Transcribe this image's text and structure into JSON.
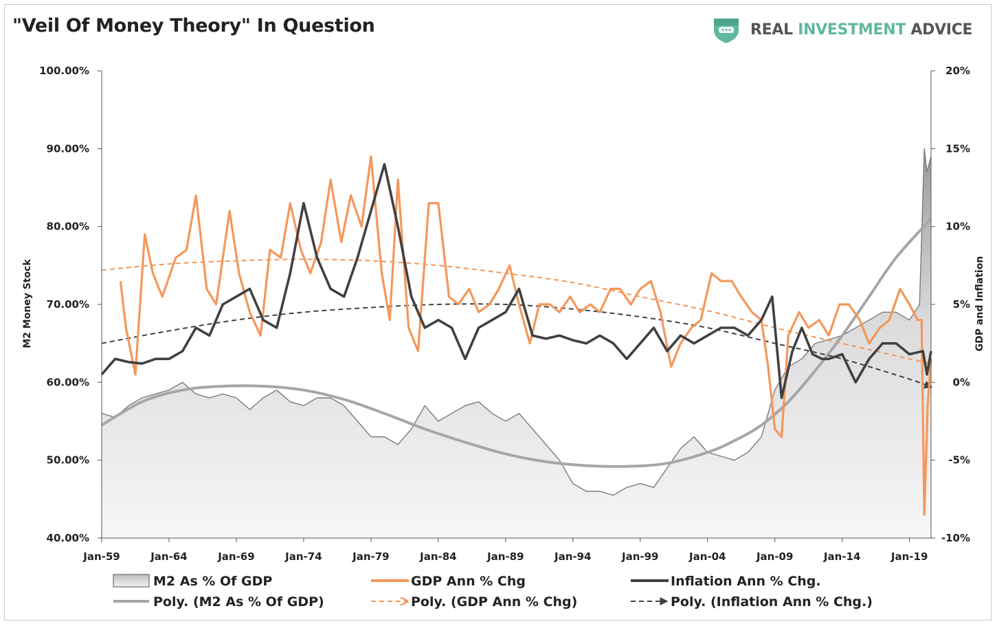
{
  "header": {
    "title": "\"Veil Of Money Theory\" In Question",
    "brand_part1": "REAL ",
    "brand_part2": "INVESTMENT ",
    "brand_part3": "ADVICE",
    "brand_colors": {
      "dark": "#555555",
      "accent": "#5fb89e"
    }
  },
  "chart_data": {
    "type": "line",
    "title": "\"Veil Of Money Theory\" In Question",
    "x_unit": "year (decimal)",
    "xlim": [
      1959,
      2020.6
    ],
    "x_ticks": [
      "Jan-59",
      "Jan-64",
      "Jan-69",
      "Jan-74",
      "Jan-79",
      "Jan-84",
      "Jan-89",
      "Jan-94",
      "Jan-99",
      "Jan-04",
      "Jan-09",
      "Jan-14",
      "Jan-19"
    ],
    "x_tick_years": [
      1959,
      1964,
      1969,
      1974,
      1979,
      1984,
      1989,
      1994,
      1999,
      2004,
      2009,
      2014,
      2019
    ],
    "left_axis": {
      "label": "M2 Money Stock",
      "ylim": [
        40,
        100
      ],
      "ticks": [
        "100.00%",
        "90.00%",
        "80.00%",
        "70.00%",
        "60.00%",
        "50.00%",
        "40.00%"
      ],
      "tick_values": [
        100,
        90,
        80,
        70,
        60,
        50,
        40
      ]
    },
    "right_axis": {
      "label": "GDP and Inflation",
      "ylim": [
        -10,
        20
      ],
      "ticks": [
        "20%",
        "15%",
        "10%",
        "5%",
        "0%",
        "-5%",
        "-10%"
      ],
      "tick_values": [
        20,
        15,
        10,
        5,
        0,
        -5,
        -10
      ]
    },
    "grid": false,
    "legend_position": "bottom",
    "legend": [
      {
        "name": "M2 As % Of GDP",
        "style": "area"
      },
      {
        "name": "GDP Ann % Chg",
        "style": "line"
      },
      {
        "name": "Inflation Ann % Chg.",
        "style": "line"
      },
      {
        "name": "Poly. (M2 As % Of GDP)",
        "style": "line"
      },
      {
        "name": "Poly. (GDP Ann % Chg)",
        "style": "dashed"
      },
      {
        "name": "Poly. (Inflation Ann % Chg.)",
        "style": "dashed"
      }
    ],
    "series": [
      {
        "name": "M2 As % Of GDP",
        "axis": "left",
        "color": "#7a7a7a",
        "x": [
          1959,
          1960,
          1961,
          1962,
          1963,
          1964,
          1965,
          1966,
          1967,
          1968,
          1969,
          1970,
          1971,
          1972,
          1973,
          1974,
          1975,
          1976,
          1977,
          1978,
          1979,
          1980,
          1981,
          1982,
          1983,
          1984,
          1985,
          1986,
          1987,
          1988,
          1989,
          1990,
          1991,
          1992,
          1993,
          1994,
          1995,
          1996,
          1997,
          1998,
          1999,
          2000,
          2001,
          2002,
          2003,
          2004,
          2005,
          2006,
          2007,
          2008,
          2009,
          2010,
          2011,
          2012,
          2013,
          2014,
          2015,
          2016,
          2017,
          2018,
          2019,
          2019.75,
          2020.1,
          2020.3,
          2020.6
        ],
        "values": [
          56,
          55.5,
          57,
          58,
          58.5,
          59,
          60,
          58.5,
          58,
          58.5,
          58,
          56.5,
          58,
          59,
          57.5,
          57,
          58,
          58,
          57,
          55,
          53,
          53,
          52,
          54,
          57,
          55,
          56,
          57,
          57.5,
          56,
          55,
          56,
          54,
          52,
          50,
          47,
          46,
          46,
          45.5,
          46.5,
          47,
          46.5,
          49,
          51.5,
          53,
          51,
          50.5,
          50,
          51,
          53,
          59,
          62,
          63,
          65,
          65.5,
          66,
          67,
          68,
          69,
          69,
          68,
          70,
          90,
          87,
          89
        ]
      },
      {
        "name": "GDP Ann % Chg",
        "axis": "right",
        "color": "#f4975a",
        "x": [
          1960.4,
          1960.8,
          1961.5,
          1962.2,
          1962.8,
          1963.5,
          1964.5,
          1965.3,
          1966,
          1966.8,
          1967.5,
          1968.5,
          1969.2,
          1970,
          1970.8,
          1971.5,
          1972.3,
          1973,
          1973.8,
          1974.5,
          1975.3,
          1976,
          1976.8,
          1977.5,
          1978.3,
          1979,
          1979.8,
          1980.4,
          1981,
          1981.8,
          1982.5,
          1983.3,
          1984,
          1984.8,
          1985.5,
          1986.3,
          1987,
          1987.8,
          1988.5,
          1989.3,
          1990,
          1990.8,
          1991.5,
          1992.3,
          1993,
          1993.8,
          1994.5,
          1995.3,
          1996,
          1996.8,
          1997.5,
          1998.3,
          1999,
          1999.8,
          2000.5,
          2001.3,
          2002,
          2002.8,
          2003.5,
          2004.3,
          2005,
          2005.8,
          2006.5,
          2007.3,
          2008,
          2008.5,
          2009,
          2009.5,
          2010,
          2010.8,
          2011.5,
          2012.3,
          2013,
          2013.8,
          2014.5,
          2015.3,
          2016,
          2016.8,
          2017.5,
          2018.3,
          2019,
          2019.6,
          2019.9,
          2020.1,
          2020.35,
          2020.6
        ],
        "values": [
          6.5,
          3.5,
          0.5,
          9.5,
          7,
          5.5,
          8,
          8.5,
          12,
          6,
          5,
          11,
          7,
          4.5,
          3,
          8.5,
          8,
          11.5,
          8.5,
          7,
          9,
          13,
          9,
          12,
          10,
          14.5,
          7,
          4,
          13,
          3.5,
          2,
          11.5,
          11.5,
          5.5,
          5,
          6,
          4.5,
          5,
          6,
          7.5,
          5,
          2.5,
          5,
          5,
          4.5,
          5.5,
          4.5,
          5,
          4.5,
          6,
          6,
          5,
          6,
          6.5,
          4.5,
          1,
          2.5,
          3.5,
          4,
          7,
          6.5,
          6.5,
          5.5,
          4.5,
          4,
          1,
          -3,
          -3.5,
          3,
          4.5,
          3.5,
          4,
          3,
          5,
          5,
          4,
          2.5,
          3.5,
          4,
          6,
          5,
          4,
          4,
          -8.5,
          -1.5,
          1.5
        ]
      },
      {
        "name": "Inflation Ann % Chg.",
        "axis": "right",
        "color": "#404040",
        "x": [
          1959,
          1960,
          1961,
          1962,
          1963,
          1964,
          1965,
          1966,
          1967,
          1968,
          1969,
          1970,
          1971,
          1972,
          1973,
          1974,
          1975,
          1976,
          1977,
          1978,
          1979,
          1980,
          1981,
          1982,
          1983,
          1984,
          1985,
          1986,
          1987,
          1988,
          1989,
          1990,
          1991,
          1992,
          1993,
          1994,
          1995,
          1996,
          1997,
          1998,
          1999,
          2000,
          2001,
          2002,
          2003,
          2004,
          2005,
          2006,
          2007,
          2008,
          2008.8,
          2009.5,
          2010.3,
          2011,
          2011.8,
          2012.5,
          2013,
          2014,
          2015,
          2016,
          2017,
          2018,
          2019,
          2020,
          2020.3,
          2020.6
        ],
        "values": [
          0.5,
          1.5,
          1.3,
          1.2,
          1.5,
          1.5,
          2,
          3.5,
          3,
          5,
          5.5,
          6,
          4,
          3.5,
          7,
          11.5,
          8,
          6,
          5.5,
          8,
          11,
          14,
          10,
          5.5,
          3.5,
          4,
          3.5,
          1.5,
          3.5,
          4,
          4.5,
          6,
          3,
          2.8,
          3,
          2.7,
          2.5,
          3,
          2.5,
          1.5,
          2.5,
          3.5,
          2,
          3,
          2.5,
          3,
          3.5,
          3.5,
          3,
          4,
          5.5,
          -1,
          2,
          3.5,
          1.8,
          1.5,
          1.5,
          1.8,
          0,
          1.5,
          2.5,
          2.5,
          1.8,
          2,
          0.5,
          2
        ]
      },
      {
        "name": "Poly. (M2 As % Of GDP)",
        "axis": "left",
        "color": "#a6a6a6",
        "x": [
          1959,
          1962,
          1965,
          1968,
          1971,
          1974,
          1977,
          1980,
          1983,
          1986,
          1989,
          1992,
          1995,
          1998,
          2001,
          2004,
          2006,
          2008,
          2010,
          2012,
          2014,
          2016,
          2018,
          2020.6
        ],
        "values": [
          54.5,
          57.5,
          59,
          59.5,
          59.5,
          59,
          57.8,
          56,
          54,
          52.3,
          50.8,
          49.8,
          49.3,
          49.2,
          49.6,
          51,
          52.5,
          54.5,
          57.5,
          61.5,
          66,
          71,
          76,
          81
        ]
      },
      {
        "name": "Poly. (GDP Ann % Chg)",
        "axis": "right",
        "color": "#f4975a",
        "x": [
          1959,
          1964,
          1969,
          1974,
          1979,
          1984,
          1989,
          1994,
          1999,
          2004,
          2009,
          2014,
          2019,
          2020.6
        ],
        "values": [
          7.2,
          7.6,
          7.8,
          7.9,
          7.8,
          7.5,
          7,
          6.4,
          5.5,
          4.6,
          3.5,
          2.5,
          1.5,
          1.2
        ]
      },
      {
        "name": "Poly. (Inflation Ann % Chg.)",
        "axis": "right",
        "color": "#404040",
        "x": [
          1959,
          1964,
          1969,
          1974,
          1979,
          1984,
          1989,
          1994,
          1999,
          2004,
          2009,
          2014,
          2019,
          2020.6
        ],
        "values": [
          2.5,
          3.3,
          4,
          4.5,
          4.8,
          5,
          5,
          4.7,
          4.2,
          3.5,
          2.5,
          1.5,
          0.2,
          -0.3
        ]
      }
    ]
  }
}
